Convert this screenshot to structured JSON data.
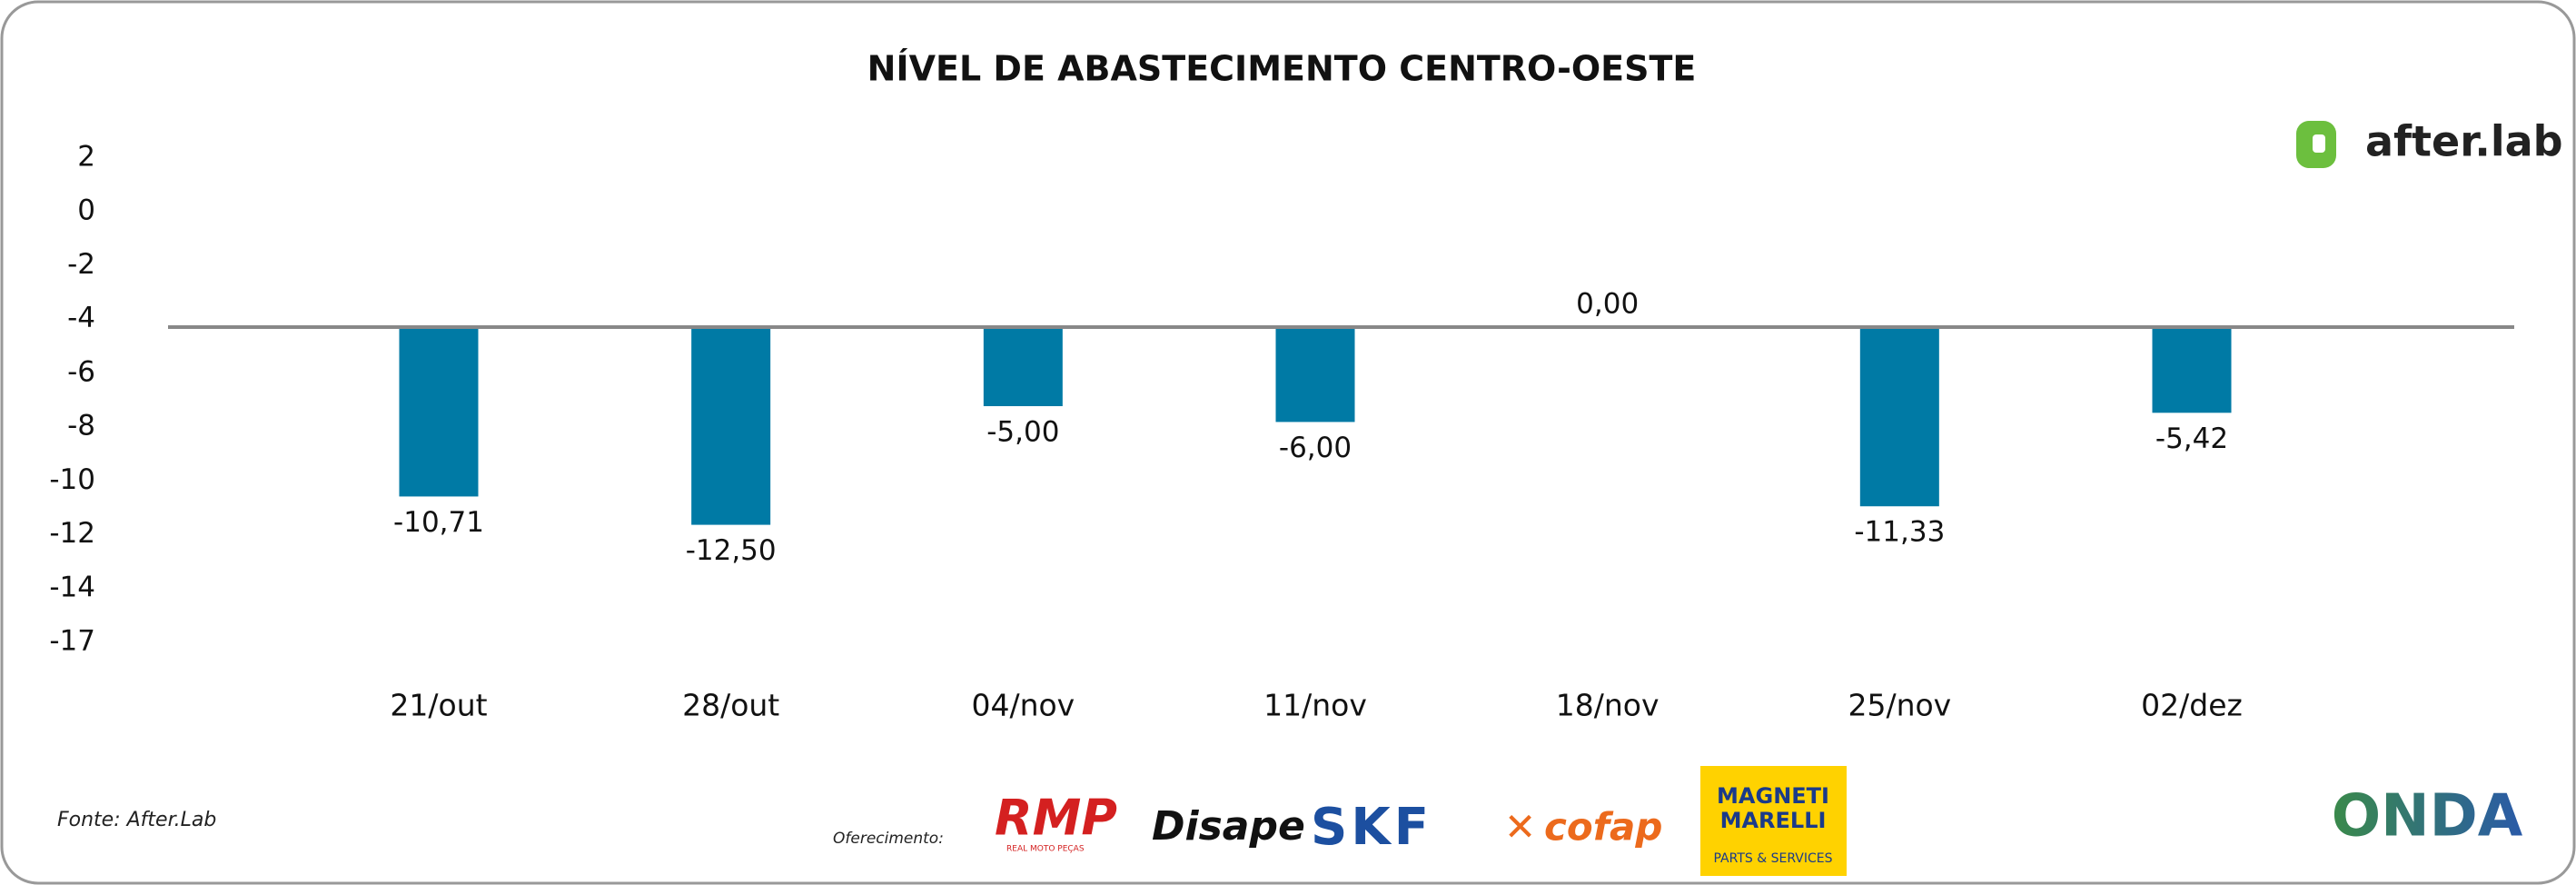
{
  "chart_data": {
    "type": "bar",
    "title": "NÍVEL DE ABASTECIMENTO CENTRO-OESTE",
    "categories": [
      "21/out",
      "28/out",
      "04/nov",
      "11/nov",
      "18/nov",
      "25/nov",
      "02/dez"
    ],
    "values": [
      -10.71,
      -12.5,
      -5,
      -6,
      0,
      -11.33,
      -5.42
    ],
    "value_labels": [
      "-10,71",
      "-12,50",
      "-5,00",
      "-6,00",
      "0,00",
      "-11,33",
      "-5,42"
    ],
    "color": "#007aa5",
    "ylim": [
      -22,
      12
    ],
    "y_axis_labels": [
      "2",
      "0",
      "-2",
      "-4",
      "-6",
      "-8",
      "-10",
      "-12",
      "-14",
      "-17"
    ],
    "source": "Fonte: After.Lab",
    "sponsor_label": "Oferecimento:",
    "logos": {
      "brand": "after.lab",
      "rmp": "RMP",
      "rmp_sub": "REAL MOTO PEÇAS",
      "disape": "Disape",
      "skf": "SKF",
      "cofap": "cofap",
      "magneti": "MAGNETI",
      "marelli": "MARELLI",
      "magneti_sub": "PARTS & SERVICES",
      "onda": "ONDA"
    }
  }
}
